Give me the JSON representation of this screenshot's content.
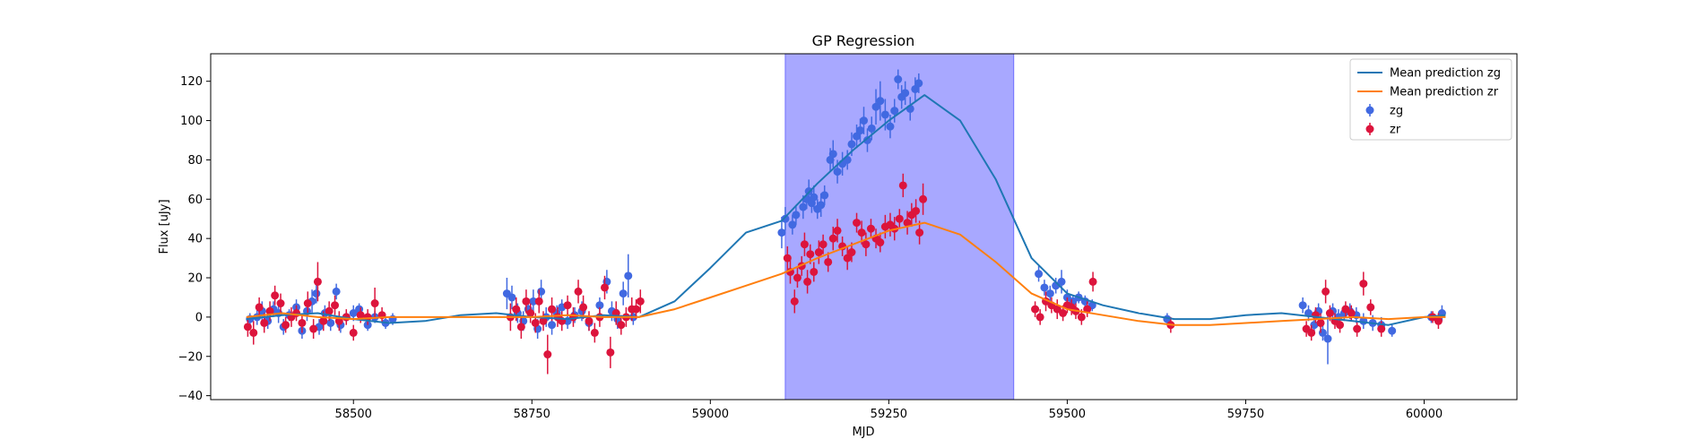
{
  "chart_data": {
    "type": "scatter",
    "title": "GP Regression",
    "xlabel": "MJD",
    "ylabel": "Flux [uJy]",
    "xlim": [
      58300,
      60130
    ],
    "ylim": [
      -42,
      134
    ],
    "xticks": [
      58500,
      58750,
      59000,
      59250,
      59500,
      59750,
      60000
    ],
    "xtick_labels": [
      "58500",
      "58750",
      "59000",
      "59250",
      "59500",
      "59750",
      "60000"
    ],
    "yticks": [
      -40,
      -20,
      0,
      20,
      40,
      60,
      80,
      100,
      120
    ],
    "ytick_labels": [
      "−40",
      "−20",
      "0",
      "20",
      "40",
      "60",
      "80",
      "100",
      "120"
    ],
    "grid": false,
    "legend_position": "upper right",
    "highlight_region": {
      "x0": 59105,
      "x1": 59425,
      "color": "#a8a8ff"
    },
    "lines": [
      {
        "name": "Mean prediction zg",
        "color": "#1f77b4",
        "x": [
          58350,
          58400,
          58450,
          58500,
          58550,
          58600,
          58650,
          58700,
          58750,
          58800,
          58850,
          58900,
          58950,
          59000,
          59050,
          59100,
          59150,
          59200,
          59250,
          59300,
          59350,
          59400,
          59450,
          59500,
          59550,
          59600,
          59650,
          59700,
          59750,
          59800,
          59850,
          59900,
          59950,
          60000,
          60030
        ],
        "y": [
          -1,
          1,
          2,
          -1,
          -3,
          -2,
          1,
          2,
          0,
          -1,
          1,
          0,
          8,
          25,
          43,
          49,
          68,
          85,
          100,
          113,
          100,
          70,
          30,
          12,
          6,
          2,
          -1,
          -1,
          1,
          2,
          0,
          -2,
          -4,
          0,
          1
        ]
      },
      {
        "name": "Mean prediction zr",
        "color": "#ff7f0e",
        "x": [
          58350,
          58400,
          58450,
          58500,
          58550,
          58600,
          58650,
          58700,
          58750,
          58800,
          58850,
          58900,
          58950,
          59000,
          59050,
          59100,
          59150,
          59200,
          59250,
          59300,
          59350,
          59400,
          59450,
          59500,
          59550,
          59600,
          59650,
          59700,
          59750,
          59800,
          59850,
          59900,
          59950,
          60000,
          60030
        ],
        "y": [
          0,
          2,
          0,
          -1,
          0,
          0,
          0,
          0,
          0,
          1,
          0,
          0,
          4,
          10,
          16,
          22,
          30,
          37,
          44,
          48,
          42,
          28,
          12,
          4,
          1,
          -2,
          -4,
          -4,
          -3,
          -2,
          -1,
          0,
          -1,
          0,
          0
        ]
      }
    ],
    "series": [
      {
        "name": "zg",
        "color": "#4169e1",
        "points": [
          [
            58355,
            -1,
            3
          ],
          [
            58365,
            0,
            4
          ],
          [
            58372,
            3,
            5
          ],
          [
            58380,
            -2,
            4
          ],
          [
            58388,
            4,
            4
          ],
          [
            58395,
            2,
            5
          ],
          [
            58402,
            -5,
            4
          ],
          [
            58410,
            1,
            3
          ],
          [
            58420,
            5,
            4
          ],
          [
            58428,
            -7,
            4
          ],
          [
            58435,
            3,
            5
          ],
          [
            58442,
            8,
            6
          ],
          [
            58448,
            12,
            5
          ],
          [
            58452,
            -5,
            4
          ],
          [
            58460,
            2,
            4
          ],
          [
            58468,
            -3,
            4
          ],
          [
            58476,
            13,
            4
          ],
          [
            58482,
            -4,
            4
          ],
          [
            58490,
            0,
            3
          ],
          [
            58500,
            2,
            4
          ],
          [
            58508,
            4,
            3
          ],
          [
            58520,
            -4,
            3
          ],
          [
            58530,
            0,
            3
          ],
          [
            58545,
            -3,
            3
          ],
          [
            58555,
            -1,
            3
          ],
          [
            58715,
            12,
            8
          ],
          [
            58722,
            10,
            6
          ],
          [
            58730,
            2,
            5
          ],
          [
            58738,
            -2,
            5
          ],
          [
            58745,
            4,
            4
          ],
          [
            58752,
            8,
            6
          ],
          [
            58758,
            -6,
            5
          ],
          [
            58763,
            13,
            6
          ],
          [
            58770,
            0,
            5
          ],
          [
            58778,
            -4,
            5
          ],
          [
            58785,
            2,
            4
          ],
          [
            58792,
            5,
            4
          ],
          [
            58800,
            -2,
            4
          ],
          [
            58810,
            1,
            4
          ],
          [
            58820,
            3,
            5
          ],
          [
            58830,
            -3,
            4
          ],
          [
            58845,
            6,
            4
          ],
          [
            58855,
            18,
            6
          ],
          [
            58862,
            3,
            5
          ],
          [
            58870,
            -1,
            5
          ],
          [
            58878,
            12,
            6
          ],
          [
            58885,
            21,
            11
          ],
          [
            58892,
            0,
            4
          ],
          [
            59100,
            43,
            8
          ],
          [
            59105,
            50,
            6
          ],
          [
            59115,
            47,
            5
          ],
          [
            59120,
            52,
            5
          ],
          [
            59130,
            56,
            6
          ],
          [
            59135,
            60,
            5
          ],
          [
            59138,
            64,
            6
          ],
          [
            59142,
            58,
            5
          ],
          [
            59145,
            61,
            6
          ],
          [
            59150,
            55,
            5
          ],
          [
            59155,
            57,
            6
          ],
          [
            59160,
            62,
            5
          ],
          [
            59168,
            80,
            6
          ],
          [
            59172,
            83,
            7
          ],
          [
            59178,
            74,
            6
          ],
          [
            59185,
            78,
            6
          ],
          [
            59192,
            80,
            5
          ],
          [
            59198,
            88,
            6
          ],
          [
            59205,
            92,
            6
          ],
          [
            59210,
            95,
            6
          ],
          [
            59215,
            100,
            7
          ],
          [
            59220,
            90,
            6
          ],
          [
            59226,
            96,
            6
          ],
          [
            59232,
            107,
            9
          ],
          [
            59238,
            110,
            10
          ],
          [
            59245,
            103,
            8
          ],
          [
            59252,
            97,
            6
          ],
          [
            59258,
            105,
            6
          ],
          [
            59263,
            121,
            5
          ],
          [
            59268,
            112,
            6
          ],
          [
            59273,
            114,
            6
          ],
          [
            59280,
            106,
            6
          ],
          [
            59287,
            116,
            6
          ],
          [
            59292,
            119,
            5
          ],
          [
            59460,
            22,
            4
          ],
          [
            59468,
            15,
            4
          ],
          [
            59476,
            12,
            4
          ],
          [
            59484,
            16,
            4
          ],
          [
            59492,
            18,
            6
          ],
          [
            59500,
            10,
            4
          ],
          [
            59508,
            8,
            3
          ],
          [
            59516,
            10,
            3
          ],
          [
            59525,
            8,
            3
          ],
          [
            59535,
            6,
            3
          ],
          [
            59640,
            -1,
            3
          ],
          [
            59830,
            6,
            4
          ],
          [
            59838,
            2,
            4
          ],
          [
            59846,
            -4,
            4
          ],
          [
            59852,
            3,
            4
          ],
          [
            59858,
            -8,
            4
          ],
          [
            59865,
            -11,
            13
          ],
          [
            59872,
            3,
            4
          ],
          [
            59880,
            0,
            4
          ],
          [
            59888,
            2,
            4
          ],
          [
            59896,
            3,
            4
          ],
          [
            59905,
            1,
            4
          ],
          [
            59915,
            -2,
            4
          ],
          [
            59928,
            -3,
            4
          ],
          [
            59940,
            -4,
            4
          ],
          [
            59955,
            -7,
            3
          ],
          [
            60010,
            0,
            3
          ],
          [
            60025,
            2,
            4
          ]
        ]
      },
      {
        "name": "zr",
        "color": "#dc143c",
        "points": [
          [
            58352,
            -5,
            5
          ],
          [
            58360,
            -8,
            6
          ],
          [
            58368,
            5,
            5
          ],
          [
            58375,
            -3,
            5
          ],
          [
            58383,
            3,
            5
          ],
          [
            58390,
            11,
            5
          ],
          [
            58398,
            7,
            5
          ],
          [
            58405,
            -4,
            4
          ],
          [
            58413,
            0,
            5
          ],
          [
            58420,
            2,
            4
          ],
          [
            58428,
            -3,
            5
          ],
          [
            58436,
            7,
            6
          ],
          [
            58444,
            -6,
            5
          ],
          [
            58450,
            18,
            10
          ],
          [
            58458,
            -2,
            5
          ],
          [
            58466,
            3,
            5
          ],
          [
            58474,
            6,
            5
          ],
          [
            58480,
            -2,
            5
          ],
          [
            58490,
            0,
            4
          ],
          [
            58500,
            -8,
            4
          ],
          [
            58510,
            1,
            4
          ],
          [
            58520,
            0,
            4
          ],
          [
            58530,
            7,
            8
          ],
          [
            58540,
            1,
            4
          ],
          [
            58720,
            0,
            7
          ],
          [
            58728,
            4,
            6
          ],
          [
            58735,
            -5,
            6
          ],
          [
            58742,
            8,
            6
          ],
          [
            58748,
            2,
            5
          ],
          [
            58755,
            -3,
            5
          ],
          [
            58760,
            8,
            6
          ],
          [
            58766,
            -2,
            5
          ],
          [
            58772,
            -19,
            10
          ],
          [
            58778,
            4,
            6
          ],
          [
            58786,
            0,
            5
          ],
          [
            58792,
            -2,
            5
          ],
          [
            58800,
            6,
            5
          ],
          [
            58808,
            0,
            5
          ],
          [
            58815,
            13,
            6
          ],
          [
            58822,
            5,
            6
          ],
          [
            58830,
            -2,
            5
          ],
          [
            58838,
            -8,
            5
          ],
          [
            58845,
            0,
            5
          ],
          [
            58852,
            15,
            6
          ],
          [
            58860,
            -18,
            8
          ],
          [
            58868,
            2,
            6
          ],
          [
            58875,
            -4,
            5
          ],
          [
            58882,
            0,
            5
          ],
          [
            58890,
            4,
            6
          ],
          [
            58896,
            4,
            5
          ],
          [
            58902,
            8,
            6
          ],
          [
            59108,
            30,
            6
          ],
          [
            59112,
            23,
            6
          ],
          [
            59118,
            8,
            6
          ],
          [
            59122,
            20,
            5
          ],
          [
            59128,
            26,
            5
          ],
          [
            59132,
            37,
            6
          ],
          [
            59136,
            18,
            6
          ],
          [
            59140,
            32,
            5
          ],
          [
            59145,
            23,
            5
          ],
          [
            59152,
            33,
            6
          ],
          [
            59158,
            37,
            5
          ],
          [
            59165,
            28,
            5
          ],
          [
            59172,
            40,
            6
          ],
          [
            59178,
            44,
            6
          ],
          [
            59185,
            36,
            5
          ],
          [
            59192,
            30,
            6
          ],
          [
            59198,
            33,
            5
          ],
          [
            59205,
            48,
            5
          ],
          [
            59212,
            43,
            6
          ],
          [
            59218,
            37,
            6
          ],
          [
            59225,
            45,
            5
          ],
          [
            59232,
            40,
            5
          ],
          [
            59238,
            38,
            5
          ],
          [
            59245,
            46,
            6
          ],
          [
            59252,
            47,
            6
          ],
          [
            59258,
            45,
            6
          ],
          [
            59265,
            50,
            5
          ],
          [
            59270,
            67,
            6
          ],
          [
            59276,
            48,
            6
          ],
          [
            59282,
            52,
            6
          ],
          [
            59288,
            54,
            6
          ],
          [
            59293,
            43,
            6
          ],
          [
            59298,
            60,
            8
          ],
          [
            59455,
            4,
            4
          ],
          [
            59462,
            0,
            4
          ],
          [
            59470,
            8,
            5
          ],
          [
            59478,
            6,
            4
          ],
          [
            59486,
            4,
            5
          ],
          [
            59494,
            2,
            4
          ],
          [
            59500,
            6,
            4
          ],
          [
            59506,
            5,
            4
          ],
          [
            59512,
            3,
            4
          ],
          [
            59520,
            0,
            4
          ],
          [
            59528,
            4,
            4
          ],
          [
            59536,
            18,
            5
          ],
          [
            59645,
            -4,
            4
          ],
          [
            59835,
            -6,
            4
          ],
          [
            59842,
            -8,
            4
          ],
          [
            59848,
            1,
            4
          ],
          [
            59855,
            -3,
            5
          ],
          [
            59862,
            13,
            6
          ],
          [
            59868,
            2,
            4
          ],
          [
            59875,
            -2,
            4
          ],
          [
            59882,
            -4,
            4
          ],
          [
            59890,
            4,
            4
          ],
          [
            59898,
            2,
            4
          ],
          [
            59906,
            -6,
            4
          ],
          [
            59915,
            17,
            6
          ],
          [
            59925,
            5,
            4
          ],
          [
            59940,
            -6,
            4
          ],
          [
            60012,
            0,
            3
          ],
          [
            60020,
            -2,
            4
          ]
        ]
      }
    ]
  }
}
